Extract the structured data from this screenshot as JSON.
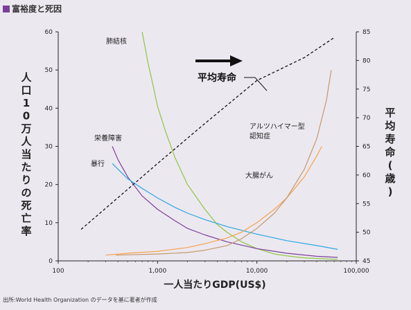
{
  "figure_title": "富裕度と死因",
  "source_note": "出所:World Health Organization のデータを基に著者が作成",
  "colors": {
    "title_square": "#7b3f98",
    "tuberculosis": "#8cc63f",
    "nutrition": "#7b3f98",
    "violence": "#29a8e0",
    "colorectal_cancer": "#f7a14a",
    "alzheimer": "#c49a6c",
    "life_expectancy": "#111111",
    "arrow": "#111111"
  },
  "chart_data": {
    "type": "line",
    "xlabel": "一人当たりGDP(US$)",
    "ylabel": "人口10万人当たりの死亡率",
    "y2label": "平均寿命(歳)",
    "x_scale": "log",
    "xlim": [
      100,
      100000
    ],
    "ylim": [
      0,
      60
    ],
    "y2lim": [
      45,
      85
    ],
    "x_ticks": [
      "100",
      "1,000",
      "10,000",
      "100,000"
    ],
    "y_ticks": [
      "0",
      "10",
      "20",
      "30",
      "40",
      "50",
      "60"
    ],
    "y2_ticks": [
      "45",
      "50",
      "55",
      "60",
      "65",
      "70",
      "75",
      "80",
      "85"
    ],
    "grid": false,
    "legend": "none (series labeled directly on chart)",
    "series": [
      {
        "name": "肺結核",
        "key": "tuberculosis",
        "axis": "left",
        "style": "solid",
        "points": [
          [
            700,
            60
          ],
          [
            800,
            52
          ],
          [
            900,
            46
          ],
          [
            1000,
            40.5
          ],
          [
            1200,
            34
          ],
          [
            1500,
            27
          ],
          [
            2000,
            20
          ],
          [
            3000,
            13.5
          ],
          [
            4000,
            9.5
          ],
          [
            5000,
            7.5
          ],
          [
            7000,
            5
          ],
          [
            10000,
            3.2
          ],
          [
            15000,
            1.8
          ],
          [
            20000,
            1.3
          ],
          [
            30000,
            0.8
          ],
          [
            50000,
            0.5
          ],
          [
            65000,
            0.4
          ]
        ]
      },
      {
        "name": "栄養障害",
        "key": "nutrition",
        "axis": "left",
        "style": "solid",
        "points": [
          [
            350,
            30
          ],
          [
            400,
            26.5
          ],
          [
            500,
            22
          ],
          [
            700,
            17
          ],
          [
            1000,
            13.5
          ],
          [
            1500,
            10.5
          ],
          [
            2000,
            8.5
          ],
          [
            3000,
            6.8
          ],
          [
            5000,
            5
          ],
          [
            10000,
            3.2
          ],
          [
            20000,
            2
          ],
          [
            40000,
            1.2
          ],
          [
            65000,
            0.9
          ]
        ]
      },
      {
        "name": "暴行",
        "key": "violence",
        "axis": "left",
        "style": "solid",
        "points": [
          [
            350,
            25.5
          ],
          [
            400,
            24
          ],
          [
            500,
            21.5
          ],
          [
            700,
            19
          ],
          [
            1000,
            16.5
          ],
          [
            1500,
            14
          ],
          [
            2000,
            12.5
          ],
          [
            3000,
            10.8
          ],
          [
            5000,
            9
          ],
          [
            10000,
            7
          ],
          [
            20000,
            5.3
          ],
          [
            40000,
            4
          ],
          [
            65000,
            3
          ]
        ]
      },
      {
        "name": "大腸がん",
        "key": "colorectal_cancer",
        "axis": "left",
        "style": "solid",
        "points": [
          [
            300,
            1.5
          ],
          [
            500,
            2
          ],
          [
            1000,
            2.5
          ],
          [
            2000,
            3.5
          ],
          [
            3000,
            4.5
          ],
          [
            5000,
            6
          ],
          [
            7000,
            7.5
          ],
          [
            10000,
            10
          ],
          [
            15000,
            13.5
          ],
          [
            20000,
            16.5
          ],
          [
            30000,
            22
          ],
          [
            40000,
            27.5
          ],
          [
            45000,
            30
          ]
        ]
      },
      {
        "name": "アルツハイマー型認知症",
        "key": "alzheimer",
        "axis": "left",
        "style": "solid",
        "points": [
          [
            380,
            1.5
          ],
          [
            1000,
            1.8
          ],
          [
            2000,
            2.2
          ],
          [
            3000,
            2.8
          ],
          [
            5000,
            4
          ],
          [
            7000,
            5.8
          ],
          [
            10000,
            8.5
          ],
          [
            15000,
            12.5
          ],
          [
            20000,
            16.5
          ],
          [
            30000,
            24
          ],
          [
            40000,
            32
          ],
          [
            50000,
            42
          ],
          [
            56000,
            50
          ]
        ]
      },
      {
        "name": "平均寿命",
        "key": "life_expectancy",
        "axis": "right",
        "style": "dashed",
        "points": [
          [
            170,
            50.5
          ],
          [
            500,
            57.5
          ],
          [
            1000,
            62
          ],
          [
            3000,
            69
          ],
          [
            10000,
            76.5
          ],
          [
            30000,
            80.5
          ],
          [
            60000,
            84
          ]
        ]
      }
    ],
    "annotations": [
      {
        "text": "肺結核",
        "key": "tuberculosis"
      },
      {
        "text": "栄養障害",
        "key": "nutrition"
      },
      {
        "text": "暴行",
        "key": "violence"
      },
      {
        "text": "アルツハイマー型",
        "key": "alzheimer_1"
      },
      {
        "text": "認知症",
        "key": "alzheimer_2"
      },
      {
        "text": "大腸がん",
        "key": "colorectal"
      },
      {
        "text": "平均寿命",
        "key": "life_expectancy"
      }
    ]
  }
}
